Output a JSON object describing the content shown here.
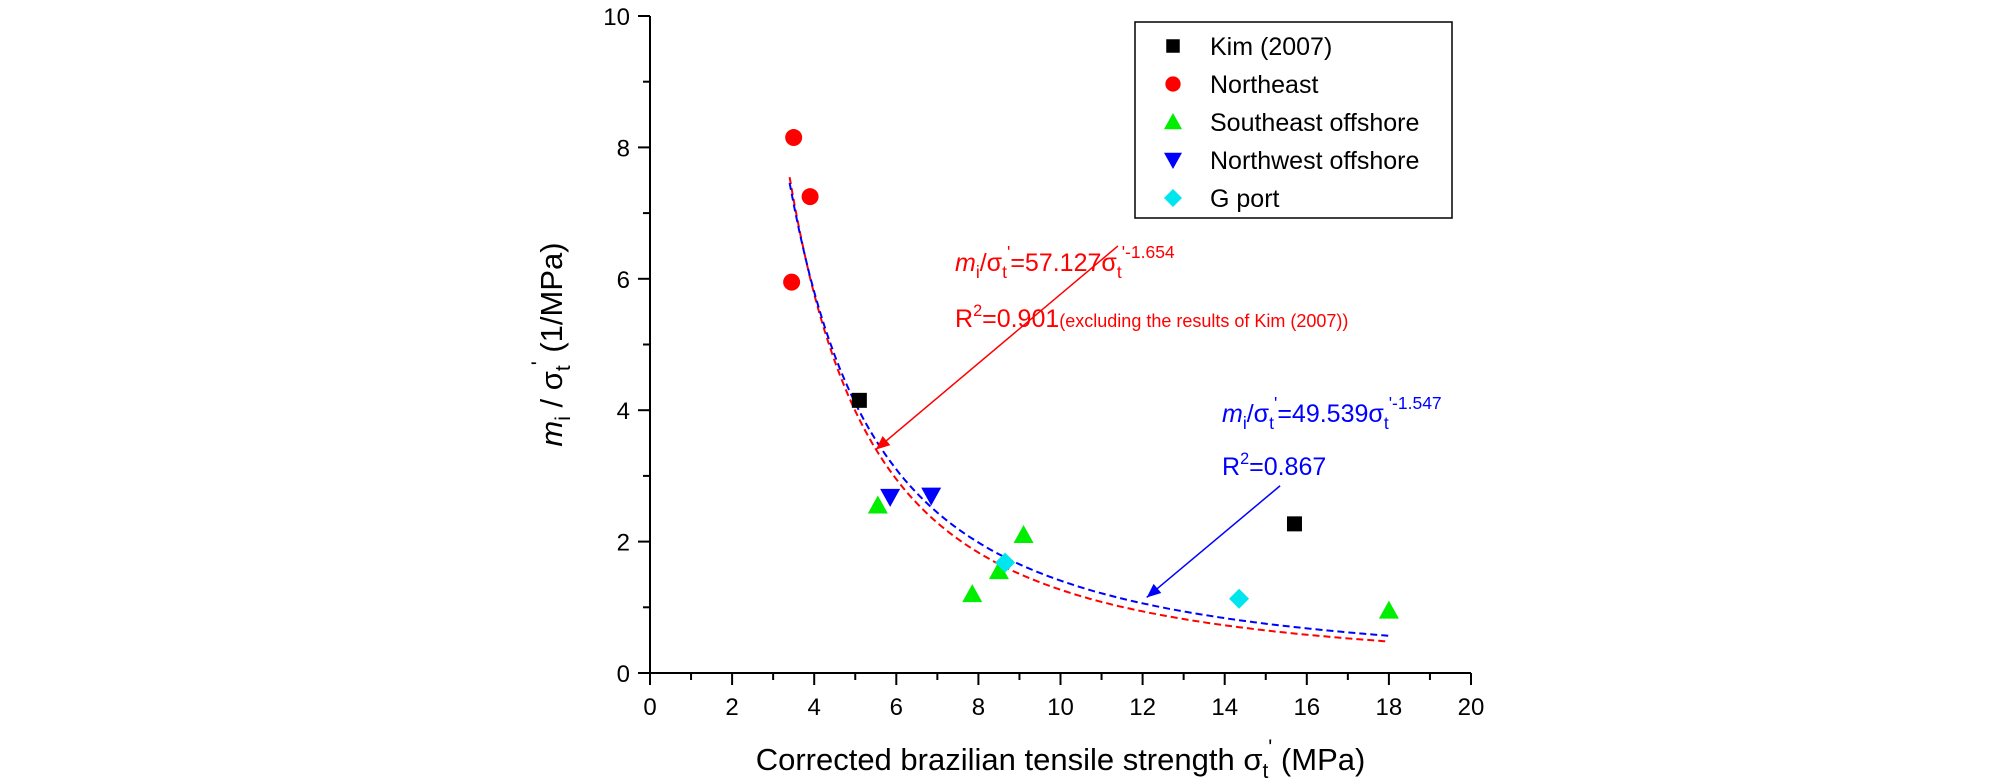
{
  "chart_data": {
    "type": "scatter",
    "xlabel": "Corrected brazilian tensile strength σ",
    "xlabel_sub": "t",
    "xlabel_sup": "'",
    "xlabel_unit": " (MPa)",
    "ylabel_m": "m",
    "ylabel_m_sub": "i",
    "ylabel_mid": " / σ",
    "ylabel_sigma_sub": "t",
    "ylabel_sigma_sup": "'",
    "ylabel_unit": " (1/MPa)",
    "xlim": [
      0,
      20
    ],
    "ylim": [
      0,
      10
    ],
    "xticks": [
      0,
      2,
      4,
      6,
      8,
      10,
      12,
      14,
      16,
      18,
      20
    ],
    "yticks": [
      0,
      2,
      4,
      6,
      8,
      10
    ],
    "legend_position": "top-right",
    "series": [
      {
        "name": "Kim (2007)",
        "marker": "square",
        "color": "#000000",
        "points": [
          [
            5.1,
            4.15
          ],
          [
            15.7,
            2.27
          ]
        ]
      },
      {
        "name": "Northeast",
        "marker": "circle",
        "color": "#ff0000",
        "points": [
          [
            3.5,
            8.15
          ],
          [
            3.9,
            7.25
          ],
          [
            3.45,
            5.95
          ]
        ]
      },
      {
        "name": "Southeast offshore",
        "marker": "triangle-up",
        "color": "#00ee00",
        "points": [
          [
            5.55,
            2.55
          ],
          [
            9.1,
            2.1
          ],
          [
            8.5,
            1.55
          ],
          [
            7.85,
            1.2
          ],
          [
            18.0,
            0.95
          ]
        ]
      },
      {
        "name": "Northwest offshore",
        "marker": "triangle-down",
        "color": "#0000ff",
        "points": [
          [
            5.85,
            2.68
          ],
          [
            6.85,
            2.7
          ]
        ]
      },
      {
        "name": "G port",
        "marker": "diamond",
        "color": "#00e5ee",
        "points": [
          [
            8.65,
            1.68
          ],
          [
            14.35,
            1.13
          ]
        ]
      }
    ],
    "fits": [
      {
        "name": "red-fit",
        "color": "#ff0000",
        "a": 57.127,
        "b": -1.654,
        "x_range": [
          3.4,
          18.0
        ],
        "label_lhs": "m",
        "label_lhs_sub": "i",
        "label_div": "/σ",
        "label_sub": "t",
        "label_sup": "'",
        "label_eq": "=57.127σ",
        "label_exp": "'-1.654",
        "r2_label": "R",
        "r2_sup": "2",
        "r2_value": "=0.901",
        "note": "(excluding the results of Kim (2007))",
        "arrow_from": [
          11.4,
          6.5
        ],
        "arrow_to": [
          5.5,
          3.4
        ]
      },
      {
        "name": "blue-fit",
        "color": "#0000ff",
        "a": 49.539,
        "b": -1.547,
        "x_range": [
          3.4,
          18.0
        ],
        "label_lhs": "m",
        "label_lhs_sub": "i",
        "label_div": "/σ",
        "label_sub": "t",
        "label_sup": "'",
        "label_eq": "=49.539σ",
        "label_exp": "'-1.547",
        "r2_label": "R",
        "r2_sup": "2",
        "r2_value": "=0.867",
        "arrow_from": [
          15.35,
          2.85
        ],
        "arrow_to": [
          12.1,
          1.15
        ]
      }
    ]
  }
}
